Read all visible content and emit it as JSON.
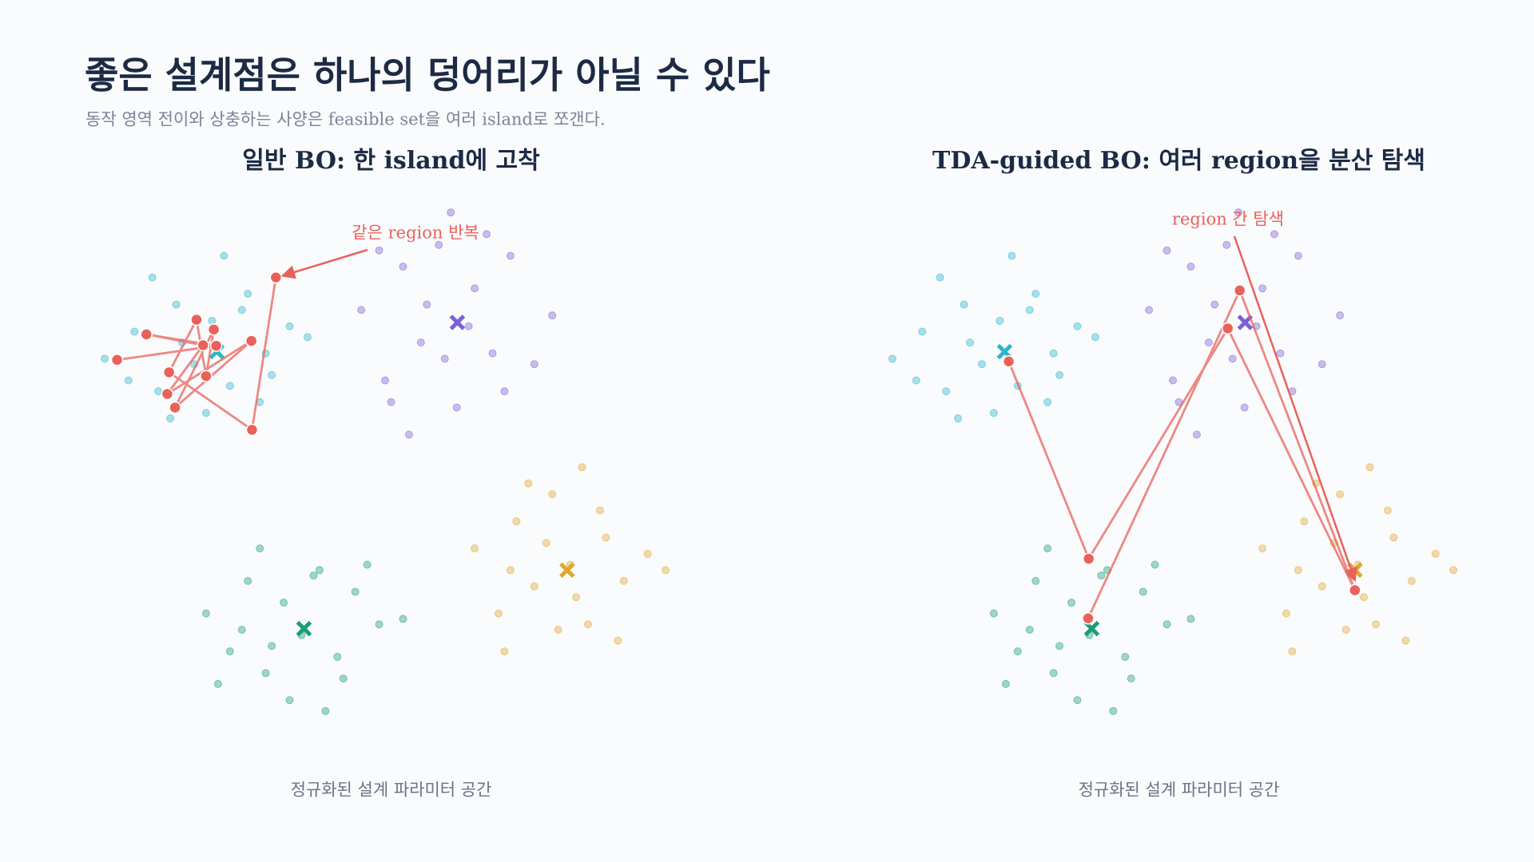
{
  "header": {
    "title": "좋은 설계점은 하나의 덩어리가 아닐 수 있다",
    "subtitle": "동작 영역 전이와 상충하는 사양은 feasible set을 여러 island로 쪼갠다."
  },
  "chart_data": [
    {
      "type": "scatter",
      "title": "일반 BO: 한 island에 고착",
      "xlabel": "정규화된 설계 파라미터 공간",
      "xlim": [
        0,
        10
      ],
      "ylim": [
        0,
        10
      ],
      "grid": false,
      "series": [
        {
          "color": "#2bb6cc",
          "center_x": 2.08,
          "center_y": 7.03,
          "x": [
            0.2,
            0.7,
            1.1,
            1.4,
            1.7,
            2.0,
            2.3,
            2.6,
            2.9,
            3.3,
            0.6,
            1.0,
            1.5,
            1.9,
            2.2,
            2.8,
            3.6,
            1.3,
            2.5,
            3.0
          ],
          "y": [
            6.9,
            7.4,
            6.3,
            7.9,
            6.8,
            7.6,
            6.4,
            8.1,
            7.0,
            7.5,
            6.5,
            8.4,
            7.2,
            5.9,
            8.8,
            6.1,
            7.3,
            5.8,
            7.8,
            6.6
          ]
        },
        {
          "color": "#7b61d4",
          "center_x": 6.11,
          "center_y": 7.57,
          "x": [
            4.5,
            4.9,
            5.2,
            5.5,
            5.8,
            6.1,
            6.4,
            6.7,
            7.0,
            7.4,
            5.0,
            5.6,
            6.0,
            6.3,
            6.9,
            7.7,
            5.3,
            6.6,
            5.9,
            4.8
          ],
          "y": [
            7.8,
            6.5,
            8.6,
            7.2,
            9.0,
            6.0,
            8.2,
            7.0,
            8.8,
            6.8,
            6.1,
            7.9,
            9.6,
            7.5,
            6.3,
            7.7,
            5.5,
            9.2,
            6.9,
            8.9
          ]
        },
        {
          "color": "#e0a82e",
          "center_x": 7.95,
          "center_y": 3.0,
          "x": [
            6.4,
            6.8,
            7.1,
            7.4,
            7.7,
            8.0,
            8.3,
            8.6,
            8.9,
            9.3,
            6.9,
            7.3,
            7.8,
            8.1,
            8.5,
            9.6,
            7.0,
            8.8,
            7.6,
            8.2
          ],
          "y": [
            3.4,
            2.2,
            3.9,
            2.7,
            4.4,
            3.1,
            2.0,
            3.6,
            2.8,
            3.3,
            1.5,
            4.6,
            1.9,
            2.5,
            4.1,
            3.0,
            3.0,
            1.7,
            3.5,
            4.9
          ]
        },
        {
          "color": "#1a9e77",
          "center_x": 3.54,
          "center_y": 1.92,
          "x": [
            1.9,
            2.3,
            2.6,
            2.9,
            3.2,
            3.5,
            3.8,
            4.1,
            4.4,
            4.8,
            2.1,
            2.8,
            3.3,
            3.7,
            4.2,
            5.2,
            2.5,
            3.9,
            3.0,
            4.6
          ],
          "y": [
            2.2,
            1.5,
            2.8,
            1.1,
            2.4,
            1.8,
            3.0,
            1.4,
            2.6,
            2.0,
            0.9,
            3.4,
            0.6,
            2.9,
            1.0,
            2.1,
            1.9,
            0.4,
            1.6,
            3.1
          ]
        }
      ],
      "trajectory": {
        "color": "#e8625a",
        "x": [
          0.41,
          2.07,
          0.9,
          1.85,
          1.25,
          2.66,
          1.38,
          2.03,
          1.9,
          1.74,
          1.28,
          2.67,
          3.07
        ],
        "y": [
          6.88,
          7.14,
          7.35,
          7.15,
          6.25,
          7.23,
          6.0,
          7.44,
          6.58,
          7.62,
          6.65,
          5.59,
          8.4
        ]
      },
      "annotation": "같은 region 반복"
    },
    {
      "type": "scatter",
      "title": "TDA-guided BO: 여러 region을 분산 탐색",
      "xlabel": "정규화된 설계 파라미터 공간",
      "xlim": [
        0,
        10
      ],
      "ylim": [
        0,
        10
      ],
      "grid": false,
      "series": [
        {
          "color": "#2bb6cc",
          "center_x": 2.08,
          "center_y": 7.03,
          "x": [
            0.2,
            0.7,
            1.1,
            1.4,
            1.7,
            2.0,
            2.3,
            2.6,
            2.9,
            3.3,
            0.6,
            1.0,
            1.5,
            1.9,
            2.2,
            2.8,
            3.6,
            1.3,
            2.5,
            3.0
          ],
          "y": [
            6.9,
            7.4,
            6.3,
            7.9,
            6.8,
            7.6,
            6.4,
            8.1,
            7.0,
            7.5,
            6.5,
            8.4,
            7.2,
            5.9,
            8.8,
            6.1,
            7.3,
            5.8,
            7.8,
            6.6
          ]
        },
        {
          "color": "#7b61d4",
          "center_x": 6.11,
          "center_y": 7.57,
          "x": [
            4.5,
            4.9,
            5.2,
            5.5,
            5.8,
            6.1,
            6.4,
            6.7,
            7.0,
            7.4,
            5.0,
            5.6,
            6.0,
            6.3,
            6.9,
            7.7,
            5.3,
            6.6,
            5.9,
            4.8
          ],
          "y": [
            7.8,
            6.5,
            8.6,
            7.2,
            9.0,
            6.0,
            8.2,
            7.0,
            8.8,
            6.8,
            6.1,
            7.9,
            9.6,
            7.5,
            6.3,
            7.7,
            5.5,
            9.2,
            6.9,
            8.9
          ]
        },
        {
          "color": "#e0a82e",
          "center_x": 7.95,
          "center_y": 3.0,
          "x": [
            6.4,
            6.8,
            7.1,
            7.4,
            7.7,
            8.0,
            8.3,
            8.6,
            8.9,
            9.3,
            6.9,
            7.3,
            7.8,
            8.1,
            8.5,
            9.6,
            7.0,
            8.8,
            7.6,
            8.2
          ],
          "y": [
            3.4,
            2.2,
            3.9,
            2.7,
            4.4,
            3.1,
            2.0,
            3.6,
            2.8,
            3.3,
            1.5,
            4.6,
            1.9,
            2.5,
            4.1,
            3.0,
            3.0,
            1.7,
            3.5,
            4.9
          ]
        },
        {
          "color": "#1a9e77",
          "center_x": 3.54,
          "center_y": 1.92,
          "x": [
            1.9,
            2.3,
            2.6,
            2.9,
            3.2,
            3.5,
            3.8,
            4.1,
            4.4,
            4.8,
            2.1,
            2.8,
            3.3,
            3.7,
            4.2,
            5.2,
            2.5,
            3.9,
            3.0,
            4.6
          ],
          "y": [
            2.2,
            1.5,
            2.8,
            1.1,
            2.4,
            1.8,
            3.0,
            1.4,
            2.6,
            2.0,
            0.9,
            3.4,
            0.6,
            2.9,
            1.0,
            2.1,
            1.9,
            0.4,
            1.6,
            3.1
          ]
        }
      ],
      "trajectory": {
        "color": "#e8625a",
        "x": [
          2.15,
          3.49,
          5.82,
          7.95,
          6.02,
          3.48
        ],
        "y": [
          6.85,
          3.21,
          7.46,
          2.63,
          8.16,
          2.11
        ]
      },
      "annotation": "region 간 탐색"
    }
  ]
}
